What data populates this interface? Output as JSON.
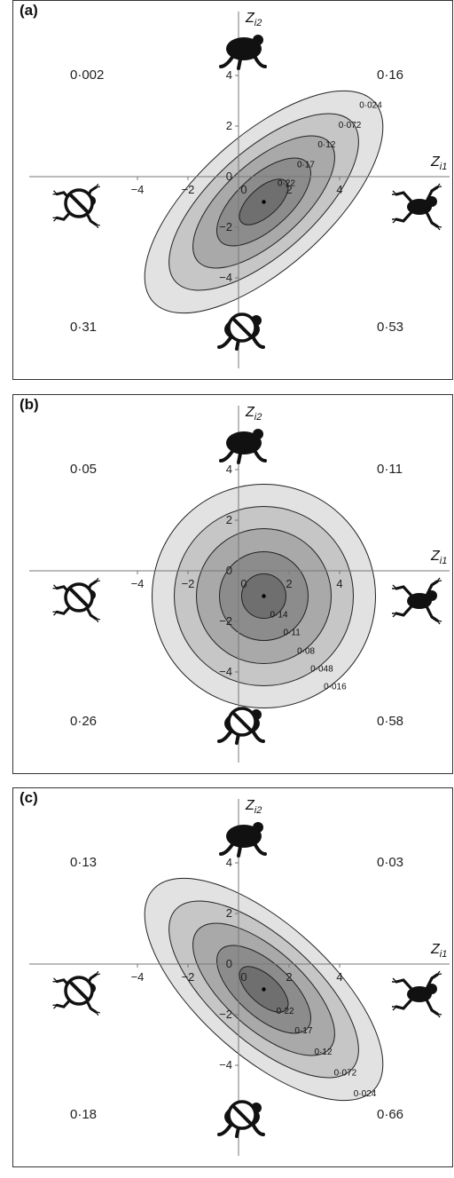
{
  "panels": [
    {
      "label": "(a)",
      "y_axis_label": "Z",
      "y_axis_sub": "i2",
      "x_axis_label": "Z",
      "x_axis_sub": "i1",
      "ticks": {
        "x": [
          "−4",
          "−2",
          "0",
          "2",
          "4"
        ],
        "y": [
          "4",
          "2",
          "0",
          "−2",
          "−4"
        ]
      },
      "quadrant_values": {
        "top_left": "0·002",
        "top_right": "0·16",
        "bottom_left": "0·31",
        "bottom_right": "0·53"
      },
      "contour_labels": [
        "0·22",
        "0·17",
        "0·12",
        "0·072",
        "0·024"
      ],
      "correlation": "positive",
      "icons": [
        "toad-icon",
        "frog-icon",
        "no-frog-icon",
        "no-toad-icon"
      ]
    },
    {
      "label": "(b)",
      "y_axis_label": "Z",
      "y_axis_sub": "i2",
      "x_axis_label": "Z",
      "x_axis_sub": "i1",
      "ticks": {
        "x": [
          "−4",
          "−2",
          "0",
          "2",
          "4"
        ],
        "y": [
          "4",
          "2",
          "0",
          "−2",
          "−4"
        ]
      },
      "quadrant_values": {
        "top_left": "0·05",
        "top_right": "0·11",
        "bottom_left": "0·26",
        "bottom_right": "0·58"
      },
      "contour_labels": [
        "0·14",
        "0·11",
        "0·08",
        "0·048",
        "0·016"
      ],
      "correlation": "none",
      "icons": [
        "toad-icon",
        "frog-icon",
        "no-frog-icon",
        "no-toad-icon"
      ]
    },
    {
      "label": "(c)",
      "y_axis_label": "Z",
      "y_axis_sub": "i2",
      "x_axis_label": "Z",
      "x_axis_sub": "i1",
      "ticks": {
        "x": [
          "−4",
          "−2",
          "0",
          "2",
          "4"
        ],
        "y": [
          "4",
          "2",
          "0",
          "−2",
          "−4"
        ]
      },
      "quadrant_values": {
        "top_left": "0·13",
        "top_right": "0·03",
        "bottom_left": "0·18",
        "bottom_right": "0·66"
      },
      "contour_labels": [
        "0·22",
        "0·17",
        "0·12",
        "0·072",
        "0·024"
      ],
      "correlation": "negative",
      "icons": [
        "toad-icon",
        "frog-icon",
        "no-frog-icon",
        "no-toad-icon"
      ]
    }
  ],
  "colors": {
    "contour_levels": [
      "#e2e2e2",
      "#c6c6c6",
      "#a9a9a9",
      "#8c8c8c",
      "#6f6f6f"
    ],
    "outline": "#222222",
    "silhouette": "#111111"
  }
}
